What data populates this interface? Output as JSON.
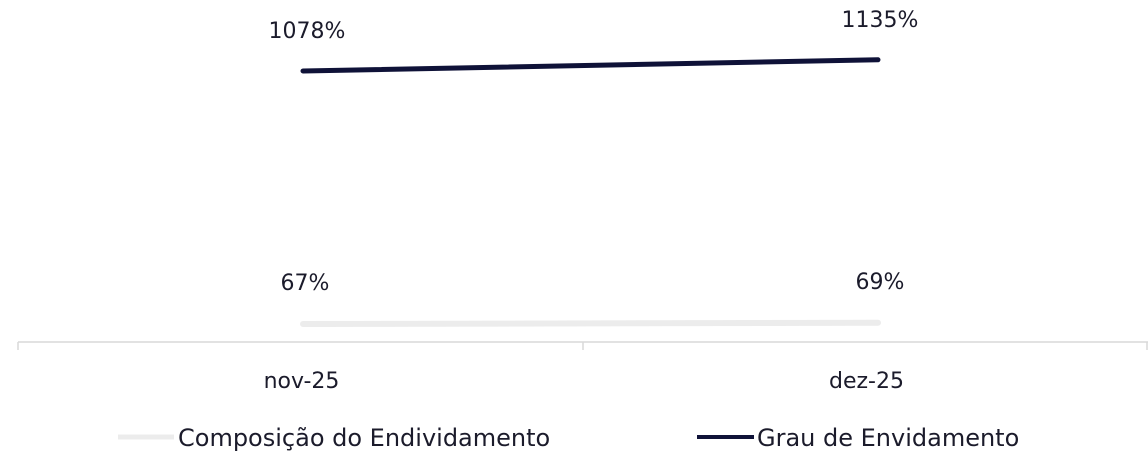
{
  "chart_data": {
    "type": "line",
    "categories": [
      "nov-25",
      "dez-25"
    ],
    "series": [
      {
        "name": "Composição do Endividamento",
        "values": [
          67,
          69
        ],
        "labels": [
          "67%",
          "69%"
        ],
        "color": "#ececec"
      },
      {
        "name": "Grau de Envidamento",
        "values": [
          1078,
          1135
        ],
        "labels": [
          "1078%",
          "1135%"
        ],
        "color": "#0f1238"
      }
    ],
    "value_unit": "%",
    "axis_color": "#d9d9d9",
    "legend_position": "bottom",
    "grid": false
  }
}
